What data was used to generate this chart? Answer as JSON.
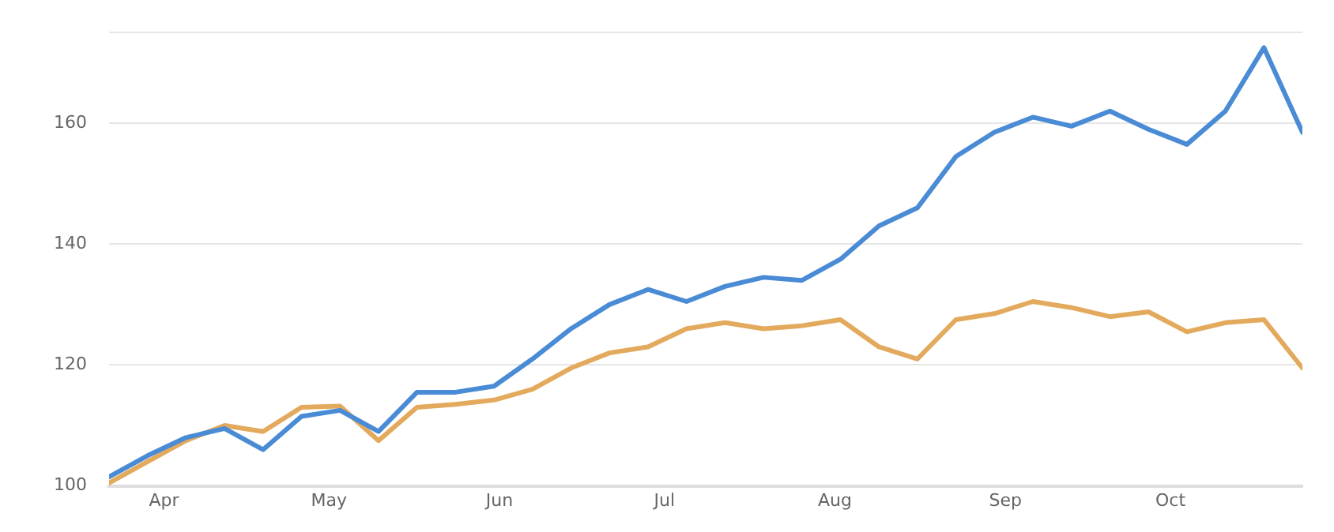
{
  "chart_data": {
    "type": "line",
    "x": [
      "--03-22",
      "--03-29",
      "--04-05",
      "--04-12",
      "--04-19",
      "--04-26",
      "--05-03",
      "--05-10",
      "--05-17",
      "--05-24",
      "--05-31",
      "--06-07",
      "--06-14",
      "--06-21",
      "--06-28",
      "--07-05",
      "--07-12",
      "--07-19",
      "--07-26",
      "--08-02",
      "--08-09",
      "--08-16",
      "--08-23",
      "--08-30",
      "--09-06",
      "--09-13",
      "--09-20",
      "--09-27",
      "--10-04",
      "--10-11",
      "--10-18",
      "--10-25"
    ],
    "series": [
      {
        "color": "#4a8bd6",
        "values": [
          101.5,
          105,
          108,
          109.5,
          106,
          111.5,
          112.5,
          109,
          115.5,
          115.5,
          116.5,
          121,
          126,
          130,
          132.5,
          130.5,
          133,
          134.5,
          134,
          137.5,
          143,
          146,
          154.5,
          158.5,
          161,
          159.5,
          162,
          159,
          156.5,
          162,
          172.5,
          158.5
        ]
      },
      {
        "color": "#e3aa5e",
        "values": [
          100.5,
          104,
          107.5,
          110,
          109,
          113,
          113.2,
          107.5,
          113,
          113.5,
          114.2,
          116,
          119.5,
          122,
          123,
          126,
          127,
          126,
          126.5,
          127.5,
          123,
          121,
          127.5,
          128.5,
          130.5,
          129.5,
          128,
          128.8,
          125.5,
          127,
          127.5,
          119.5
        ]
      }
    ],
    "xlim": [
      "--03-22",
      "--10-25"
    ],
    "xticks": [
      {
        "value": "--04-01",
        "label": "Apr"
      },
      {
        "value": "--05-01",
        "label": "May"
      },
      {
        "value": "--06-01",
        "label": "Jun"
      },
      {
        "value": "--07-01",
        "label": "Jul"
      },
      {
        "value": "--08-01",
        "label": "Aug"
      },
      {
        "value": "--09-01",
        "label": "Sep"
      },
      {
        "value": "--10-01",
        "label": "Oct"
      }
    ],
    "ylim": [
      100,
      175
    ],
    "yticks": [
      100,
      120,
      140,
      160,
      {
        "value": 175,
        "label": null
      }
    ],
    "grid": "y",
    "legend": false,
    "marker": "none",
    "line_style": "solid"
  }
}
